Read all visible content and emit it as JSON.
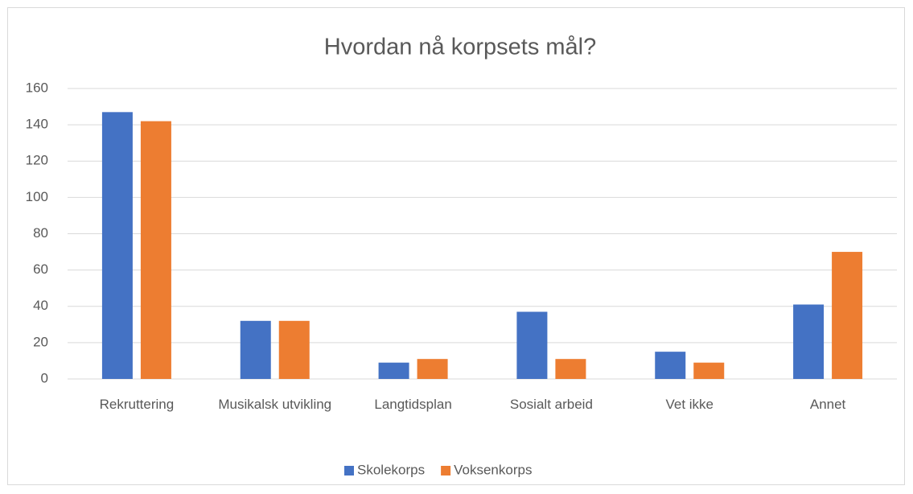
{
  "chart_data": {
    "type": "bar",
    "title": "Hvordan nå korpsets mål?",
    "categories": [
      "Rekruttering",
      "Musikalsk utvikling",
      "Langtidsplan",
      "Sosialt arbeid",
      "Vet ikke",
      "Annet"
    ],
    "series": [
      {
        "name": "Skolekorps",
        "color": "#4472c4",
        "values": [
          147,
          32,
          9,
          37,
          15,
          41
        ]
      },
      {
        "name": "Voksenkorps",
        "color": "#ed7d31",
        "values": [
          142,
          32,
          11,
          11,
          9,
          70
        ]
      }
    ],
    "ylim": [
      0,
      160
    ],
    "yticks": [
      0,
      20,
      40,
      60,
      80,
      100,
      120,
      140,
      160
    ],
    "grid": true,
    "legend": "bottom"
  }
}
